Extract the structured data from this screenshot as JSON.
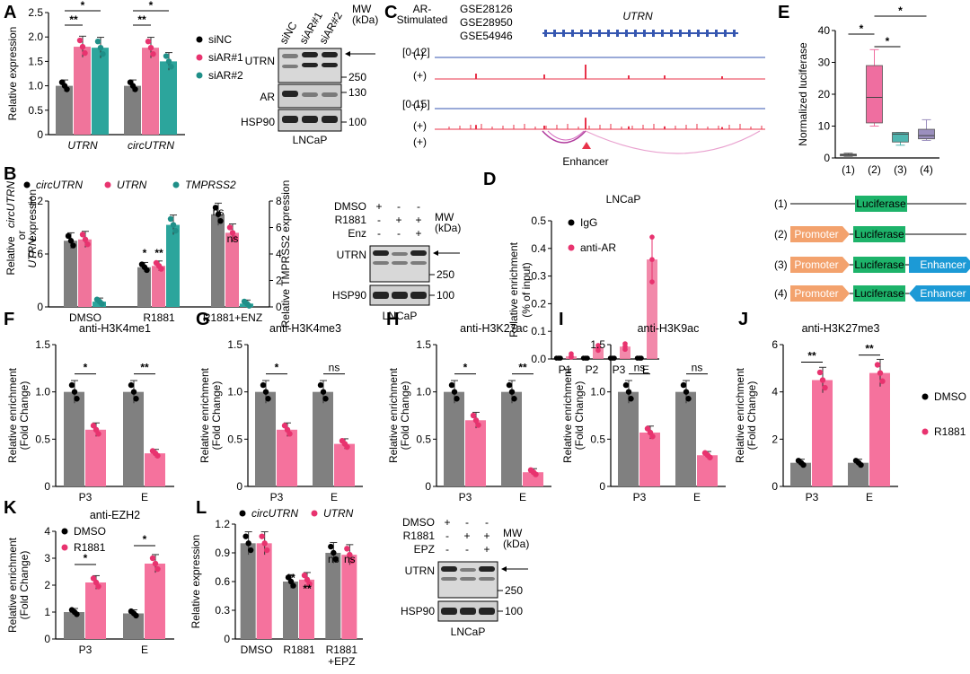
{
  "colors": {
    "dark": "#7f7f7f",
    "pink": "#f0749b",
    "teal": "#2ca59c",
    "red": "#e8334a",
    "blue": "#3556b0",
    "orange": "#f3a26d",
    "green": "#1db36a",
    "lightblue": "#1c9ad6",
    "boxpink": "#ef6ea0",
    "boxteal": "#4fb6b0",
    "boxpurple": "#9b8fbe"
  },
  "chart_data": [
    {
      "panel": "A",
      "type": "bar",
      "ylabel": "Relative expression",
      "ylim": [
        0,
        2.5
      ],
      "yticks": [
        "0",
        "0.5",
        "1.0",
        "1.5",
        "2.0",
        "2.5"
      ],
      "categories": [
        "UTRN",
        "circUTRN"
      ],
      "series": [
        {
          "name": "siNC",
          "values": [
            1.0,
            1.0
          ]
        },
        {
          "name": "siAR#1",
          "values": [
            1.8,
            1.78
          ]
        },
        {
          "name": "siAR#2",
          "values": [
            1.78,
            1.5
          ]
        }
      ],
      "sig": [
        "**",
        "*",
        "**",
        "*"
      ]
    },
    {
      "panel": "B",
      "type": "bar",
      "ylabel_left": [
        "Relative",
        "circUTRN",
        "or",
        "UTRN",
        "expression"
      ],
      "ylabel_right": "Relative TMPRSS2 expression",
      "ylim_left": [
        0,
        1.6
      ],
      "yticks_left": [
        "0",
        "0.6",
        "1.2"
      ],
      "ylim_right": [
        0,
        8
      ],
      "yticks_right": [
        "0",
        "2",
        "4",
        "6",
        "8"
      ],
      "categories": [
        "DMSO",
        "R1881",
        "R1881+ENZ"
      ],
      "series": [
        {
          "name": "circUTRN",
          "values": [
            1.0,
            0.6,
            1.4
          ]
        },
        {
          "name": "UTRN",
          "values": [
            1.02,
            0.62,
            1.12
          ]
        },
        {
          "name": "TMPRSS2",
          "values": [
            0.4,
            6.2,
            0.25
          ]
        }
      ],
      "sig": [
        "*",
        "**",
        "ns",
        "ns"
      ]
    },
    {
      "panel": "D",
      "type": "scatter",
      "title": "LNCaP",
      "ylabel": "Relative enrichment (% of input)",
      "ylim": [
        0,
        0.5
      ],
      "yticks": [
        "0.0",
        "0.1",
        "0.2",
        "0.3",
        "0.4",
        "0.5"
      ],
      "categories": [
        "P1",
        "P2",
        "P3",
        "E"
      ],
      "series": [
        {
          "name": "IgG",
          "values": [
            0.003,
            0.003,
            0.003,
            0.003
          ]
        },
        {
          "name": "anti-AR",
          "values": [
            0.01,
            0.04,
            0.045,
            0.36
          ]
        }
      ]
    },
    {
      "panel": "E",
      "type": "box",
      "ylabel": "Normalized luciferase",
      "ylim": [
        0,
        40
      ],
      "yticks": [
        "0",
        "10",
        "20",
        "30",
        "40"
      ],
      "categories": [
        "(1)",
        "(2)",
        "(3)",
        "(4)"
      ],
      "boxes": [
        {
          "min": 0.5,
          "q1": 0.8,
          "median": 1.0,
          "q3": 1.2,
          "max": 1.5
        },
        {
          "min": 10,
          "q1": 11,
          "median": 19,
          "q3": 29,
          "max": 34
        },
        {
          "min": 4,
          "q1": 5,
          "median": 7.5,
          "q3": 8,
          "max": 8
        },
        {
          "min": 5.5,
          "q1": 6,
          "median": 7,
          "q3": 9,
          "max": 12
        }
      ],
      "sig": [
        "*",
        "*",
        "*"
      ]
    },
    {
      "panel": "F",
      "type": "bar",
      "title": "anti-H3K4me1",
      "ylabel": "Relative enrichment (Fold Change)",
      "ylim": [
        0,
        1.5
      ],
      "yticks": [
        "0",
        "0.5",
        "1.0",
        "1.5"
      ],
      "categories": [
        "P3",
        "E"
      ],
      "series": [
        {
          "name": "DMSO",
          "values": [
            1.0,
            1.0
          ]
        },
        {
          "name": "R1881",
          "values": [
            0.6,
            0.35
          ]
        }
      ],
      "sig": [
        "*",
        "**"
      ]
    },
    {
      "panel": "G",
      "type": "bar",
      "title": "anti-H3K4me3",
      "ylabel": "Relative enrichment (Fold Change)",
      "ylim": [
        0,
        1.5
      ],
      "yticks": [
        "0",
        "0.5",
        "1.0",
        "1.5"
      ],
      "categories": [
        "P3",
        "E"
      ],
      "series": [
        {
          "name": "DMSO",
          "values": [
            1.0,
            1.0
          ]
        },
        {
          "name": "R1881",
          "values": [
            0.6,
            0.45
          ]
        }
      ],
      "sig": [
        "*",
        "ns"
      ]
    },
    {
      "panel": "H",
      "type": "bar",
      "title": "anti-H3K27ac",
      "ylabel": "Relative enrichment (Fold Change)",
      "ylim": [
        0,
        1.5
      ],
      "yticks": [
        "0",
        "0.5",
        "1.0",
        "1.5"
      ],
      "categories": [
        "P3",
        "E"
      ],
      "series": [
        {
          "name": "DMSO",
          "values": [
            1.0,
            1.0
          ]
        },
        {
          "name": "R1881",
          "values": [
            0.7,
            0.15
          ]
        }
      ],
      "sig": [
        "*",
        "**"
      ]
    },
    {
      "panel": "I",
      "type": "bar",
      "title": "anti-H3K9ac",
      "ylabel": "Relative enrichment (Fold Change)",
      "ylim": [
        0,
        1.5
      ],
      "yticks": [
        "0",
        "0.5",
        "1.0",
        "1.5"
      ],
      "categories": [
        "P3",
        "E"
      ],
      "series": [
        {
          "name": "DMSO",
          "values": [
            1.0,
            1.0
          ]
        },
        {
          "name": "R1881",
          "values": [
            0.57,
            0.33
          ]
        }
      ],
      "sig": [
        "ns",
        "ns"
      ]
    },
    {
      "panel": "J",
      "type": "bar",
      "title": "anti-H3K27me3",
      "ylabel": "Relative enrichment (Fold Change)",
      "ylim": [
        0,
        6
      ],
      "yticks": [
        "0",
        "2",
        "4",
        "6"
      ],
      "categories": [
        "P3",
        "E"
      ],
      "series": [
        {
          "name": "DMSO",
          "values": [
            1.0,
            1.0
          ]
        },
        {
          "name": "R1881",
          "values": [
            4.5,
            4.8
          ]
        }
      ],
      "sig": [
        "**",
        "**"
      ]
    },
    {
      "panel": "K",
      "type": "bar",
      "title": "anti-EZH2",
      "ylabel": "Relative enrichment (Fold Change)",
      "ylim": [
        0,
        4
      ],
      "yticks": [
        "0",
        "1",
        "2",
        "3",
        "4"
      ],
      "categories": [
        "P3",
        "E"
      ],
      "series": [
        {
          "name": "DMSO",
          "values": [
            1.0,
            0.95
          ]
        },
        {
          "name": "R1881",
          "values": [
            2.1,
            2.8
          ]
        }
      ],
      "sig": [
        "*",
        "*"
      ]
    },
    {
      "panel": "L",
      "type": "bar",
      "ylabel": "Relative expression",
      "ylim": [
        0,
        1.2
      ],
      "yticks": [
        "0",
        "0.3",
        "0.6",
        "0.9",
        "1.2"
      ],
      "categories": [
        "DMSO",
        "R1881",
        "R1881\n+EPZ"
      ],
      "series": [
        {
          "name": "circUTRN",
          "values": [
            1.0,
            0.6,
            0.9
          ]
        },
        {
          "name": "UTRN",
          "values": [
            1.0,
            0.62,
            0.88
          ]
        }
      ],
      "sig": [
        "**",
        "**",
        "ns",
        "ns"
      ]
    }
  ],
  "panels": {
    "A": "A",
    "B": "B",
    "C": "C",
    "D": "D",
    "E": "E",
    "F": "F",
    "G": "G",
    "H": "H",
    "I": "I",
    "J": "J",
    "K": "K",
    "L": "L"
  },
  "legendA": [
    "siNC",
    "siAR#1",
    "siAR#2"
  ],
  "blotA": {
    "lanes": [
      "siNC",
      "siAR#1",
      "siAR#2"
    ],
    "mw": "MW\n(kDa)",
    "rows": [
      "UTRN",
      "AR",
      "HSP90"
    ],
    "marks": [
      "250",
      "130",
      "100"
    ],
    "cell": "LNCaP"
  },
  "legendB": [
    "circUTRN",
    "UTRN",
    "TMPRSS2"
  ],
  "blotB": {
    "conds": [
      "DMSO",
      "R1881",
      "Enz"
    ],
    "signs": [
      [
        "+",
        "-",
        "-"
      ],
      [
        "-",
        "+",
        "+"
      ],
      [
        "-",
        "-",
        "+"
      ]
    ],
    "mw": "MW\n(kDa)",
    "rows": [
      "UTRN",
      "HSP90"
    ],
    "marks": [
      "250",
      "100"
    ],
    "cell": "LNCaP"
  },
  "blotL": {
    "conds": [
      "DMSO",
      "R1881",
      "EPZ"
    ],
    "signs": [
      [
        "+",
        "-",
        "-"
      ],
      [
        "-",
        "+",
        "+"
      ],
      [
        "-",
        "-",
        "+"
      ]
    ],
    "mw": "MW\n(kDa)",
    "rows": [
      "UTRN",
      "HSP90"
    ],
    "marks": [
      "250",
      "100"
    ],
    "cell": "LNCaP"
  },
  "panelC": {
    "stim": "AR-\nStimulated",
    "gse": [
      "GSE28126",
      "GSE28950",
      "GSE54946"
    ],
    "gene": "UTRN",
    "scale1": "[0-12]",
    "scale2": "[0-15]",
    "tracks": [
      "(-)",
      "(+)",
      "(-)",
      "(+)",
      "(+)"
    ],
    "enhancer": "Enhancer"
  },
  "constructsE": [
    {
      "id": "(1)",
      "parts": [
        "Luciferase"
      ]
    },
    {
      "id": "(2)",
      "parts": [
        "Promoter",
        "Luciferase"
      ]
    },
    {
      "id": "(3)",
      "parts": [
        "Promoter",
        "Luciferase",
        "Enhancer"
      ]
    },
    {
      "id": "(4)",
      "parts": [
        "Promoter",
        "Luciferase",
        "Enhancer"
      ]
    }
  ],
  "legendJ": [
    "DMSO",
    "R1881"
  ],
  "legendK": [
    "DMSO",
    "R1881"
  ],
  "legendL": [
    "circUTRN",
    "UTRN"
  ],
  "legendD": [
    "IgG",
    "anti-AR"
  ]
}
